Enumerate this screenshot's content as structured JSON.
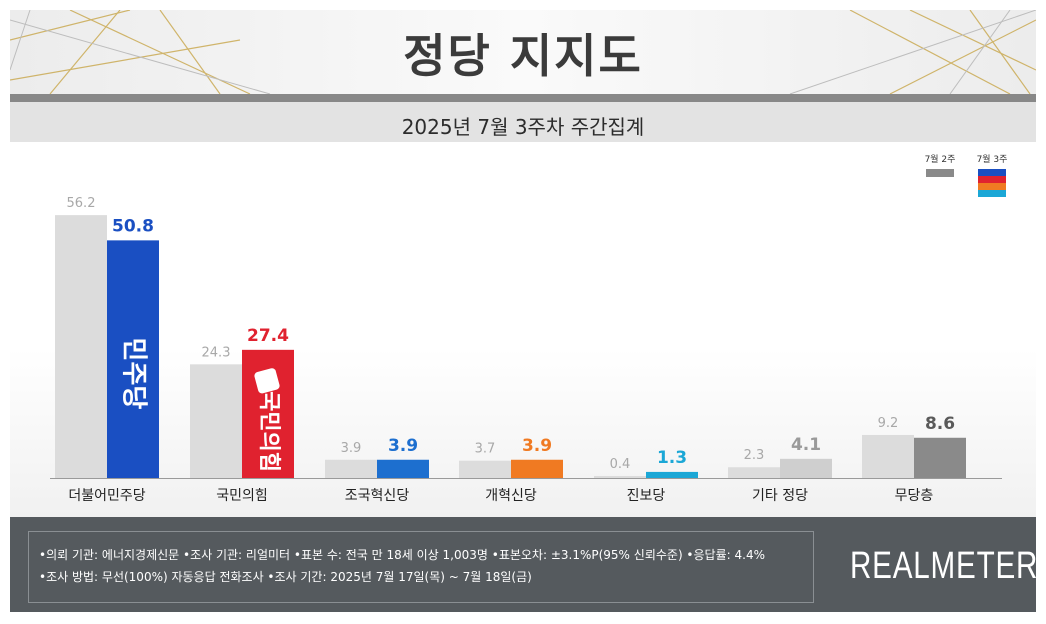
{
  "header": {
    "title": "정당 지지도",
    "subtitle": "2025년 7월 3주차 주간집계"
  },
  "legend": {
    "prev_label": "7월 2주",
    "curr_label": "7월 3주",
    "prev_color": "#8a8a8a",
    "curr_colors": [
      "#1a4fc2",
      "#e0222f",
      "#f07a22",
      "#1ba7d6"
    ]
  },
  "chart_data": {
    "type": "bar",
    "categories": [
      "더불어민주당",
      "국민의힘",
      "조국혁신당",
      "개혁신당",
      "진보당",
      "기타 정당",
      "무당층"
    ],
    "series": [
      {
        "name": "7월 2주",
        "values": [
          56.2,
          24.3,
          3.9,
          3.7,
          0.4,
          2.3,
          9.2
        ]
      },
      {
        "name": "7월 3주",
        "values": [
          50.8,
          27.4,
          3.9,
          3.9,
          1.3,
          4.1,
          8.6
        ]
      }
    ],
    "value_labels_prev": [
      "56.2",
      "24.3",
      "3.9",
      "3.7",
      "0.4",
      "2.3",
      "9.2"
    ],
    "value_labels_curr": [
      "50.8",
      "27.4",
      "3.9",
      "3.9",
      "1.3",
      "4.1",
      "8.6"
    ],
    "prev_color": "#dcdcdc",
    "curr_colors": [
      "#1a4fc2",
      "#e0222f",
      "#1d6fcf",
      "#f07a22",
      "#1ba7d6",
      "#cfcfcf",
      "#8a8a8a"
    ],
    "curr_label_colors": [
      "#1a4fc2",
      "#e0222f",
      "#1d6fcf",
      "#f07a22",
      "#1ba7d6",
      "#9a9a9a",
      "#5a5a5a"
    ],
    "bar_logos": [
      "민주당",
      "국민의힘",
      "",
      "",
      "",
      "",
      ""
    ],
    "ylim": [
      0,
      60
    ],
    "grid": false,
    "legend_position": "top-right"
  },
  "footer": {
    "note_line1": "•의뢰 기관: 에너지경제신문  •조사 기관: 리얼미터 •표본 수: 전국 만 18세 이상 1,003명 •표본오차: ±3.1%P(95% 신뢰수준) •응답률: 4.4%",
    "note_line2": "•조사 방법: 무선(100%) 자동응답 전화조사 •조사 기간: 2025년 7월 17일(목) ~ 7월 18일(금)",
    "brand": "REALMETER"
  }
}
